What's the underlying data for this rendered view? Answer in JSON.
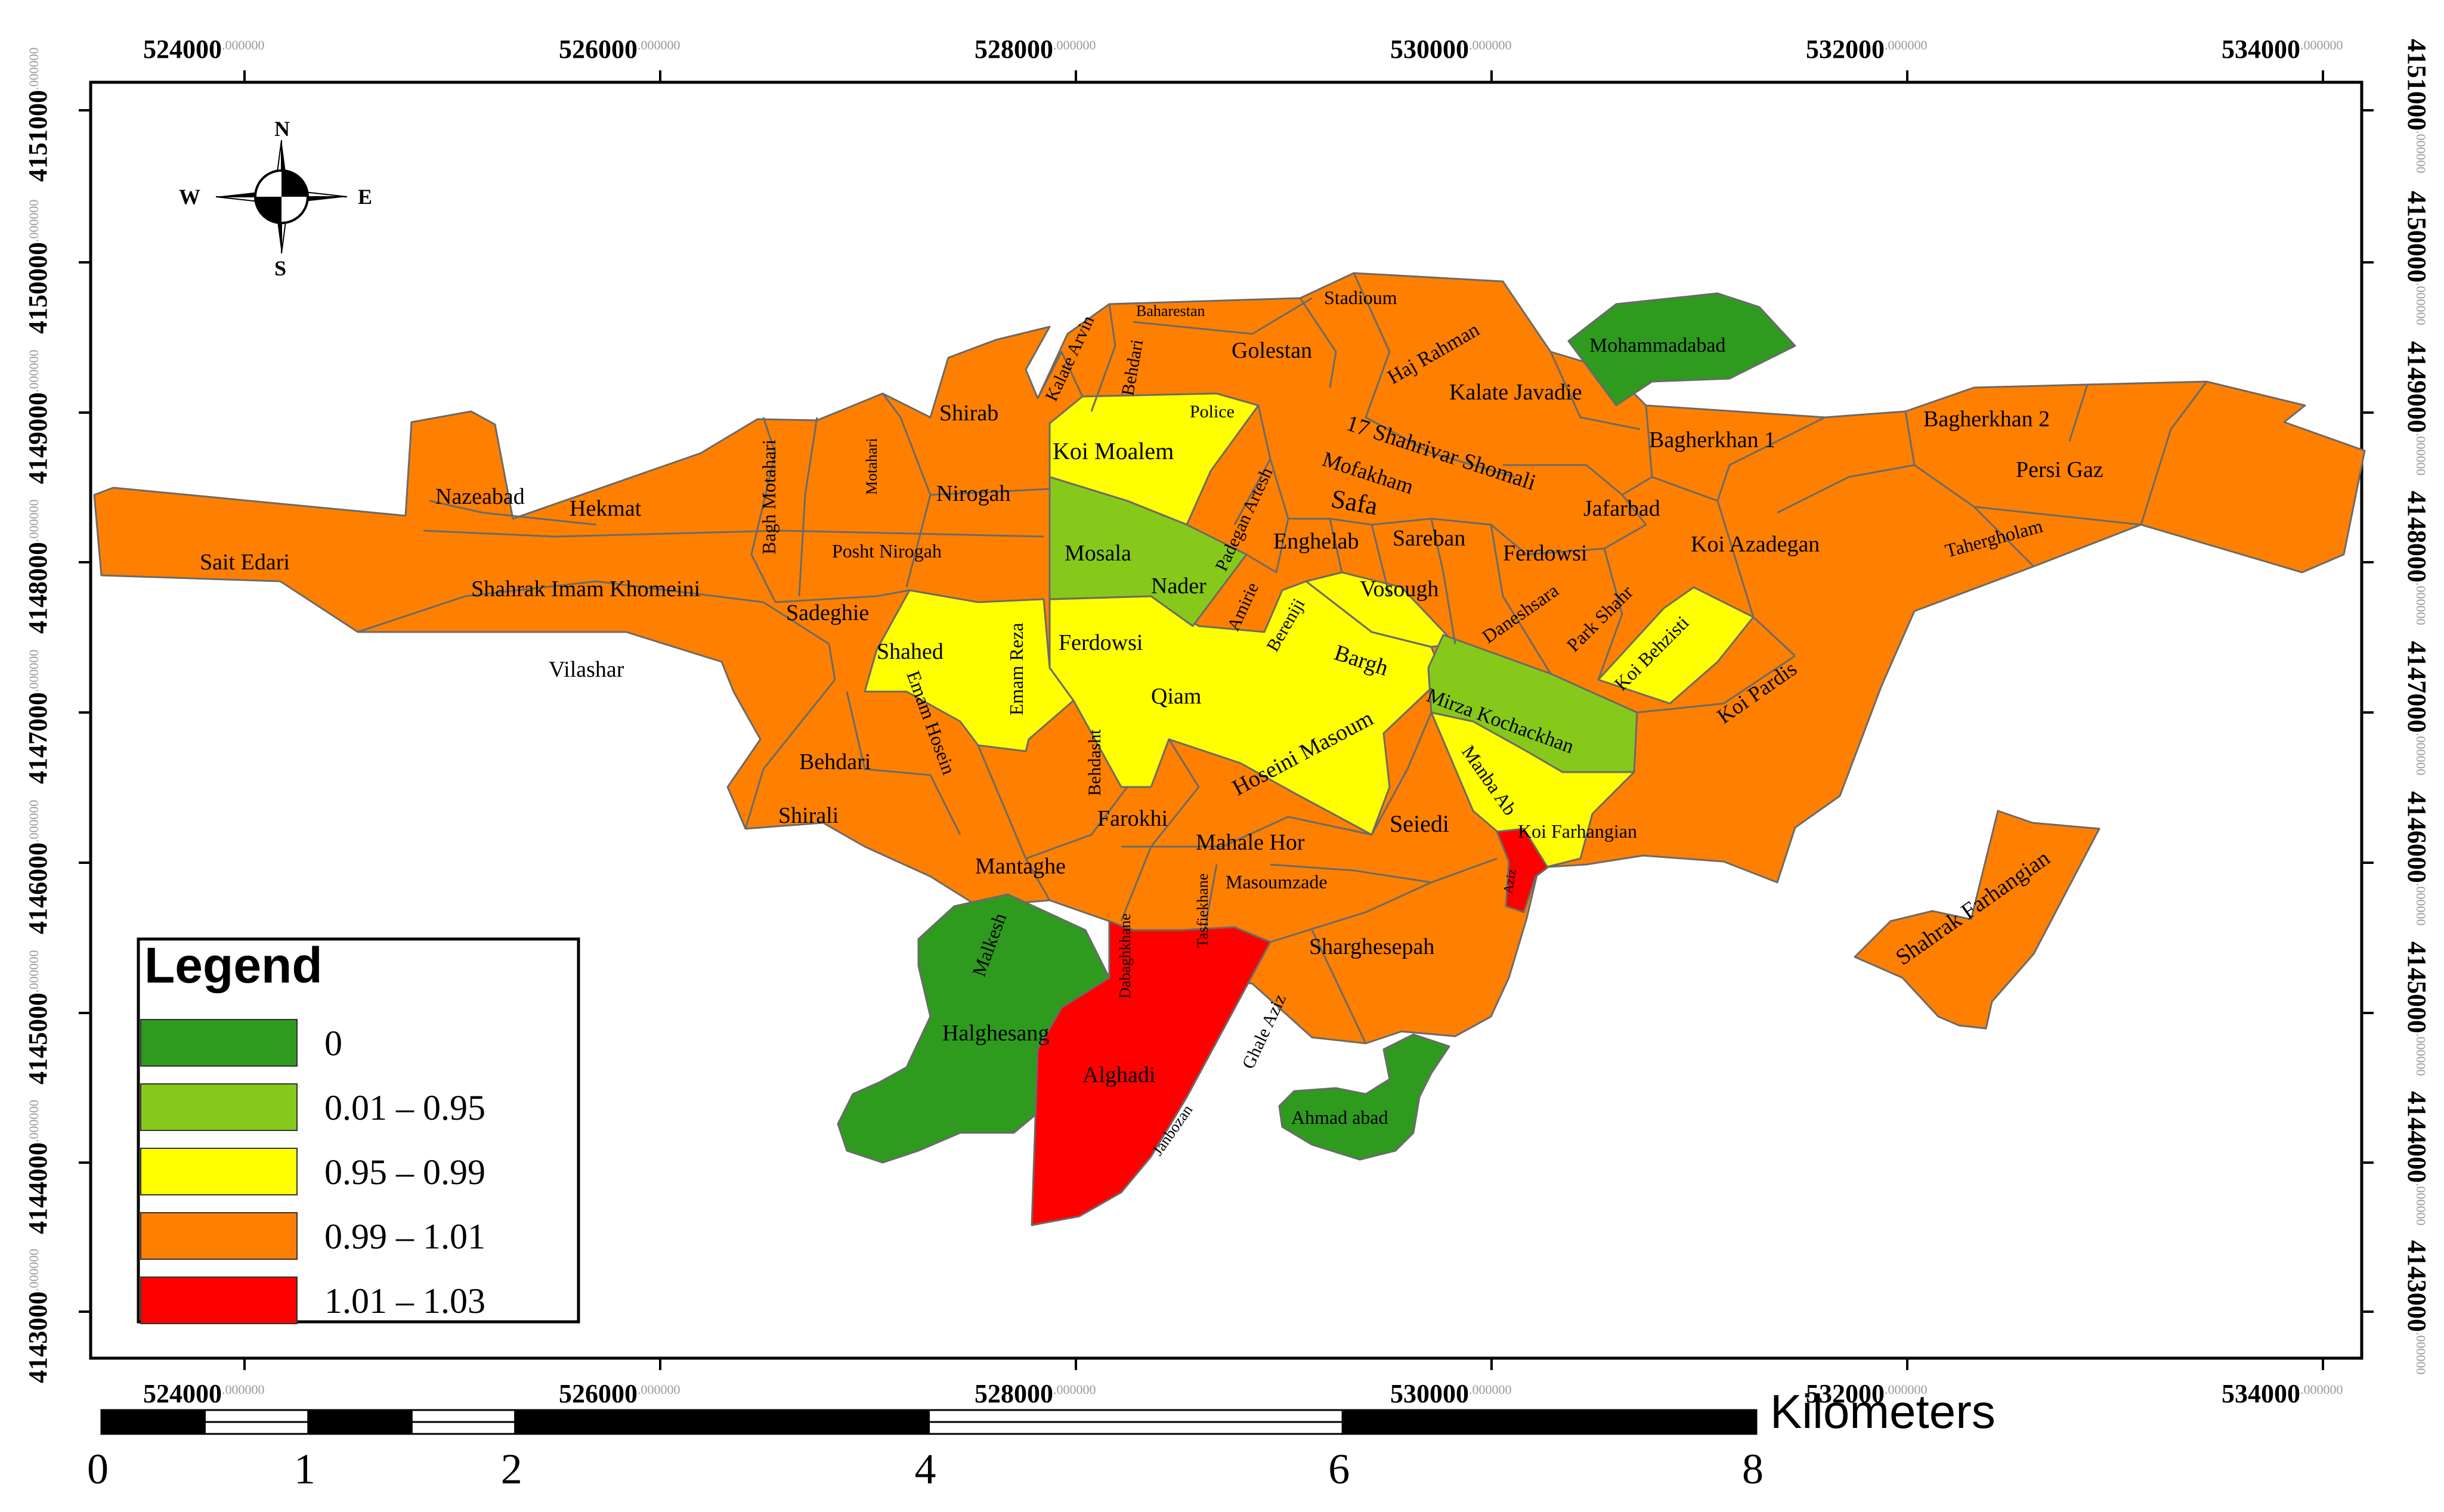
{
  "frame": {
    "x_ticks_top": [
      {
        "major": "524000",
        "minor": ".000000"
      },
      {
        "major": "526000",
        "minor": ".000000"
      },
      {
        "major": "528000",
        "minor": ".000000"
      },
      {
        "major": "530000",
        "minor": ".000000"
      },
      {
        "major": "532000",
        "minor": ".000000"
      },
      {
        "major": "534000",
        "minor": ".000000"
      }
    ],
    "x_ticks_bottom": [
      {
        "major": "524000",
        "minor": ".000000"
      },
      {
        "major": "526000",
        "minor": ".000000"
      },
      {
        "major": "528000",
        "minor": ".000000"
      },
      {
        "major": "530000",
        "minor": ".000000"
      },
      {
        "major": "532000",
        "minor": ".000000"
      },
      {
        "major": "534000",
        "minor": ".000000"
      }
    ],
    "y_ticks": [
      {
        "major": "4151000",
        "minor": ".000000"
      },
      {
        "major": "4150000",
        "minor": ".000000"
      },
      {
        "major": "4149000",
        "minor": ".000000"
      },
      {
        "major": "4148000",
        "minor": ".000000"
      },
      {
        "major": "4147000",
        "minor": ".000000"
      },
      {
        "major": "4146000",
        "minor": ".000000"
      },
      {
        "major": "4145000",
        "minor": ".000000"
      },
      {
        "major": "4144000",
        "minor": ".000000"
      },
      {
        "major": "4143000",
        "minor": ".000000"
      }
    ]
  },
  "north_arrow": {
    "n": "N",
    "s": "S",
    "e": "E",
    "w": "W"
  },
  "legend": {
    "title": "Legend",
    "classes": [
      {
        "label": "0",
        "color": "#2e9b1f"
      },
      {
        "label": "0.01 – 0.95",
        "color": "#86c91a"
      },
      {
        "label": "0.95 – 0.99",
        "color": "#ffff00"
      },
      {
        "label": "0.99 – 1.01",
        "color": "#ff8000"
      },
      {
        "label": "1.01 – 1.03",
        "color": "#ff0000"
      }
    ]
  },
  "scale_bar": {
    "unit": "Kilometers",
    "labels": [
      "0",
      "1",
      "2",
      "4",
      "6",
      "8"
    ]
  },
  "district_labels": [
    "Sait Edari",
    "Nazeabad",
    "Hekmat",
    "Bagh Motahari",
    "Motahari",
    "Shahrak Imam Khomeini",
    "Vilashar",
    "Posht Nirogah",
    "Nirogah",
    "Shirab",
    "Sadeghie",
    "Behdari",
    "Shirali",
    "Shahed",
    "Emam Reza",
    "Emam Hosein",
    "Ferdowsi",
    "Koi Moalem",
    "Police",
    "Mosala",
    "Nader",
    "Qiam",
    "Behdasht",
    "Farokhi",
    "Mantaghe",
    "Malkesh",
    "Halghesang",
    "Dabaghkhane",
    "Tasfiekhane",
    "Alghadi",
    "Janbozan",
    "Ghale Aziz",
    "Mahale Hor",
    "Masoumzade",
    "Sharghesepah",
    "Ahmad abad",
    "Hoseini Masoum",
    "Seiedi",
    "Bargh",
    "Bereniji",
    "Amirie",
    "Vosough",
    "Enghelab",
    "Padegan Artesh",
    "Safa",
    "Mofakham",
    "Sareban",
    "Ferdowsi",
    "Daneshsara",
    "Park Shahr",
    "Koi Behzisti",
    "Mirza Kochackhan",
    "Manba Ab",
    "Koi Farhangian",
    "Aziz",
    "Koi Pardis",
    "Koi Azadegan",
    "Jafarbad",
    "17 Shahrivar Shomali",
    "Kalate Javadie",
    "Haj Rahman",
    "Golestan",
    "Stadioum",
    "Baharestan",
    "Behdari",
    "Kalate Arvin",
    "Mohammadabad",
    "Bagherkhan 1",
    "Bagherkhan 2",
    "Persi Gaz",
    "Tahergholam",
    "Shahrak Farhangian"
  ]
}
